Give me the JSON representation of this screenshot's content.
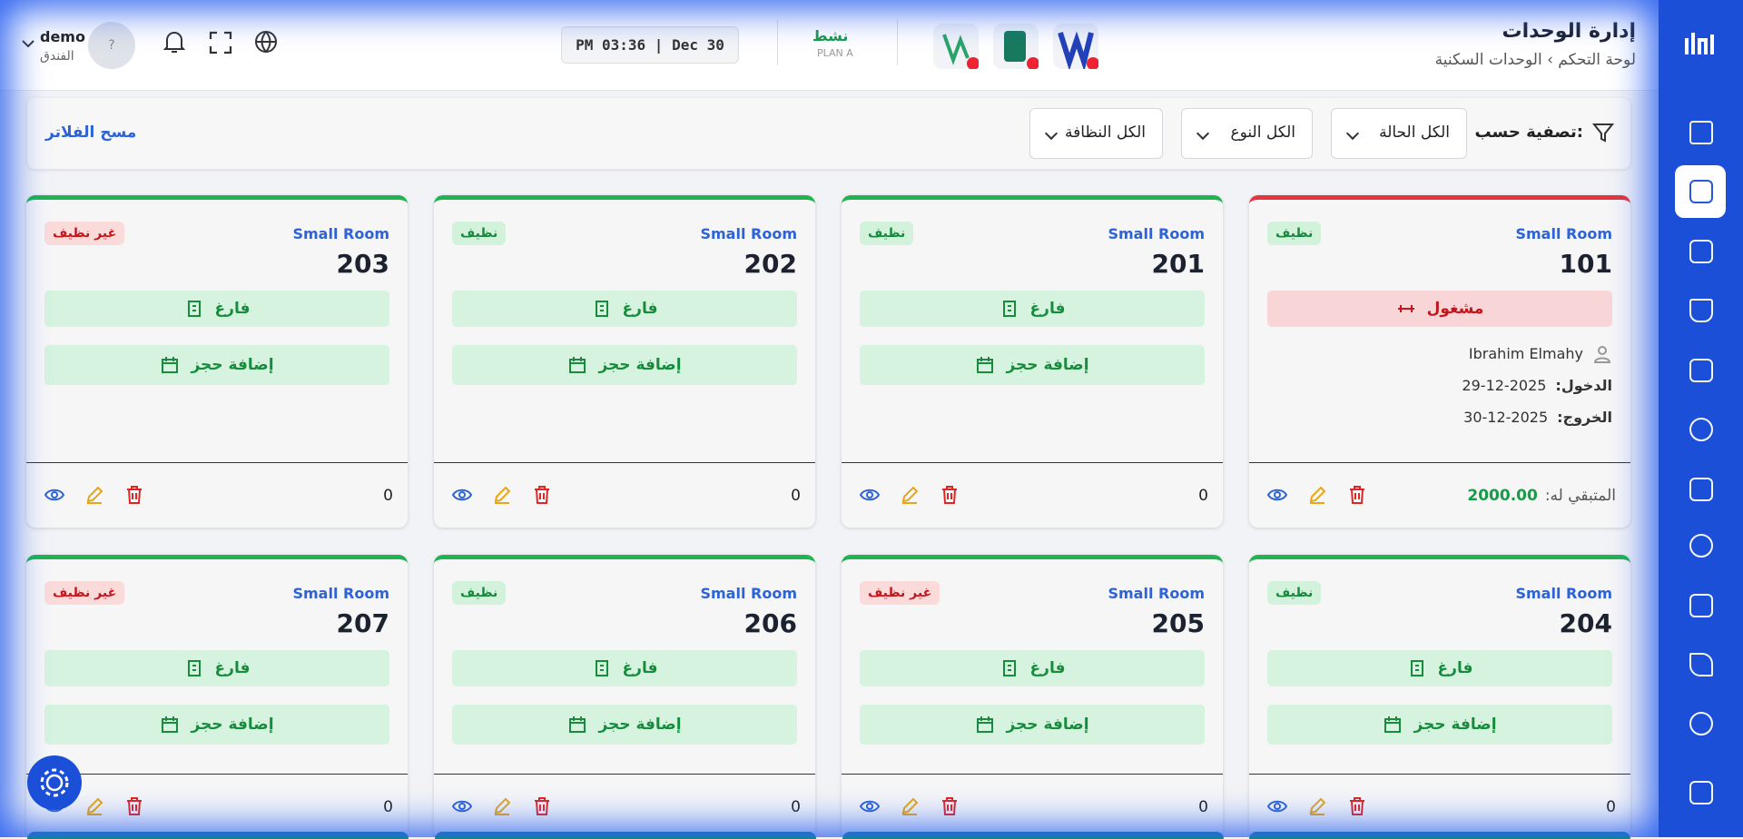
{
  "header": {
    "title": "إدارة الوحدات",
    "breadcrumb": [
      "لوحة التحكم",
      "الوحدات السكنية"
    ],
    "clock": "PM 03:36 | Dec 30",
    "status": "نشط",
    "plan": "PLAN A",
    "avatar": "?",
    "user": "demo",
    "hotel": "الفندق"
  },
  "filters": {
    "label": "تصفية حسب:",
    "selects": [
      "الكل الحالة",
      "الكل النوع",
      "الكل النظافة"
    ],
    "clear": "مسح الفلاتر"
  },
  "units": [
    {
      "number": "101",
      "type": "Small Room",
      "cleanliness": "نظيف",
      "status": "مشغول",
      "guest": "Ibrahim Elmahy",
      "checkin_label": "الدخول:",
      "checkin": "2025-12-29",
      "checkout_label": "الخروج:",
      "checkout": "2025-12-30",
      "remaining_label": "المتبقي له:",
      "remaining": "2000.00"
    },
    {
      "number": "201",
      "type": "Small Room",
      "cleanliness": "نظيف",
      "status": "فارغ",
      "action": "إضافة حجز",
      "balance": "0"
    },
    {
      "number": "202",
      "type": "Small Room",
      "cleanliness": "نظيف",
      "status": "فارغ",
      "action": "إضافة حجز",
      "balance": "0"
    },
    {
      "number": "203",
      "type": "Small Room",
      "cleanliness": "غير نظيف",
      "status": "فارغ",
      "action": "إضافة حجز",
      "balance": "0"
    },
    {
      "number": "204",
      "type": "Small Room",
      "cleanliness": "نظيف",
      "status": "فارغ",
      "action": "إضافة حجز",
      "balance": "0"
    },
    {
      "number": "205",
      "type": "Small Room",
      "cleanliness": "غير نظيف",
      "status": "فارغ",
      "action": "إضافة حجز",
      "balance": "0"
    },
    {
      "number": "206",
      "type": "Small Room",
      "cleanliness": "نظيف",
      "status": "فارغ",
      "action": "إضافة حجز",
      "balance": "0"
    },
    {
      "number": "207",
      "type": "Small Room",
      "cleanliness": "غير نظيف",
      "status": "فارغ",
      "action": "إضافة حجز",
      "balance": "0"
    }
  ]
}
